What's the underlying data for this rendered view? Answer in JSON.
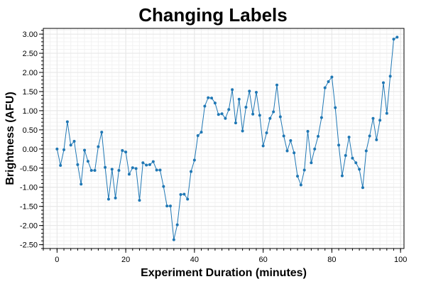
{
  "chart_data": {
    "type": "line",
    "title": "Changing Labels",
    "xlabel": "Experiment Duration (minutes)",
    "ylabel": "Brightness (AFU)",
    "xlim": [
      -4,
      101
    ],
    "ylim": [
      -2.6,
      3.15
    ],
    "xticks": [
      0,
      20,
      40,
      60,
      80,
      100
    ],
    "xtick_labels": [
      "0",
      "20",
      "40",
      "60",
      "80",
      "100"
    ],
    "yticks": [
      3.0,
      2.5,
      2.0,
      1.5,
      1.0,
      0.5,
      0.0,
      -0.5,
      -1.0,
      -1.5,
      -2.0,
      -2.5
    ],
    "ytick_labels": [
      "3.00",
      "2.50",
      "2.00",
      "1.50",
      "1.00",
      "0.50",
      "0.00",
      "-0.50",
      "-1.00",
      "-1.50",
      "-2.00",
      "-2.50"
    ],
    "grid": true,
    "colors": {
      "series": "#1f77b4",
      "grid": "#e6e6e6",
      "axis": "#000000"
    },
    "series": [
      {
        "x": [
          0,
          1,
          2,
          3,
          4,
          5,
          6,
          7,
          8,
          9,
          10,
          11,
          12,
          13,
          14,
          15,
          16,
          17,
          18,
          19,
          20,
          21,
          22,
          23,
          24,
          25,
          26,
          27,
          28,
          29,
          30,
          31,
          32,
          33,
          34,
          35,
          36,
          37,
          38,
          39,
          40,
          41,
          42,
          43,
          44,
          45,
          46,
          47,
          48,
          49,
          50,
          51,
          52,
          53,
          54,
          55,
          56,
          57,
          58,
          59,
          60,
          61,
          62,
          63,
          64,
          65,
          66,
          67,
          68,
          69,
          70,
          71,
          72,
          73,
          74,
          75,
          76,
          77,
          78,
          79,
          80,
          81,
          82,
          83,
          84,
          85,
          86,
          87,
          88,
          89,
          90,
          91,
          92,
          93,
          94,
          95,
          96,
          97,
          98,
          99
        ],
        "y": [
          0.0,
          -0.43,
          -0.02,
          0.71,
          0.1,
          0.2,
          -0.41,
          -0.92,
          -0.03,
          -0.32,
          -0.56,
          -0.56,
          0.06,
          0.44,
          -0.48,
          -1.31,
          -0.53,
          -1.28,
          -0.56,
          -0.04,
          -0.08,
          -0.66,
          -0.49,
          -0.51,
          -1.34,
          -0.36,
          -0.42,
          -0.41,
          -0.33,
          -0.55,
          -0.55,
          -0.98,
          -1.49,
          -1.49,
          -2.37,
          -1.98,
          -1.19,
          -1.18,
          -1.31,
          -0.59,
          -0.29,
          0.35,
          0.44,
          1.12,
          1.34,
          1.33,
          1.2,
          0.9,
          0.92,
          0.8,
          1.03,
          1.55,
          0.68,
          1.3,
          0.47,
          1.09,
          1.51,
          0.91,
          1.48,
          0.88,
          0.08,
          0.42,
          0.8,
          0.97,
          1.67,
          0.84,
          0.34,
          -0.05,
          0.22,
          -0.1,
          -0.71,
          -0.94,
          -0.55,
          0.46,
          -0.36,
          0.0,
          0.33,
          0.82,
          1.6,
          1.76,
          1.88,
          1.08,
          0.1,
          -0.7,
          -0.17,
          0.31,
          -0.24,
          -0.36,
          -0.53,
          -1.01,
          -0.05,
          0.34,
          0.8,
          0.24,
          0.75,
          1.73,
          0.93,
          1.9,
          2.87,
          2.92
        ]
      }
    ]
  }
}
